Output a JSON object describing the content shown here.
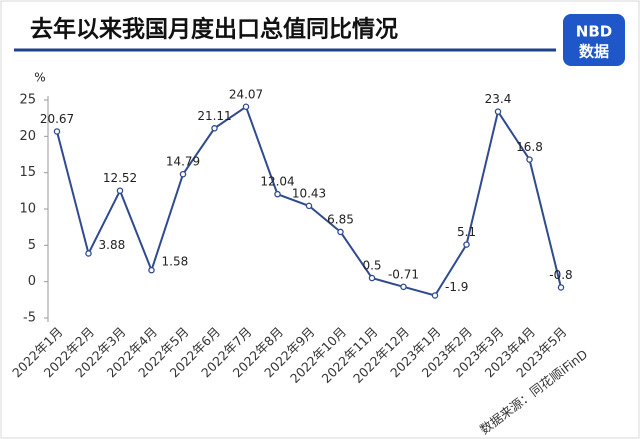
{
  "chart_data": {
    "type": "line",
    "title": "去年以来我国月度出口总值同比情况",
    "y_label": "%",
    "source": "数据来源：同花顺iFinD",
    "logo": {
      "brand": "NBD",
      "label": "数据"
    },
    "categories": [
      "2022年1月",
      "2022年2月",
      "2022年3月",
      "2022年4月",
      "2022年5月",
      "2022年6月",
      "2022年7月",
      "2022年8月",
      "2022年9月",
      "2022年10月",
      "2022年11月",
      "2022年12月",
      "2023年1月",
      "2023年2月",
      "2023年3月",
      "2023年4月",
      "2023年5月"
    ],
    "values": [
      20.67,
      3.88,
      12.52,
      1.58,
      14.79,
      21.11,
      24.07,
      12.04,
      10.43,
      6.85,
      0.5,
      -0.71,
      -1.9,
      5.1,
      23.4,
      16.8,
      -0.8
    ],
    "color": "#2f4a8f",
    "ylim": [
      -5,
      25
    ],
    "yticks": [
      -5,
      0,
      5,
      10,
      15,
      20,
      25
    ],
    "grid": false
  }
}
